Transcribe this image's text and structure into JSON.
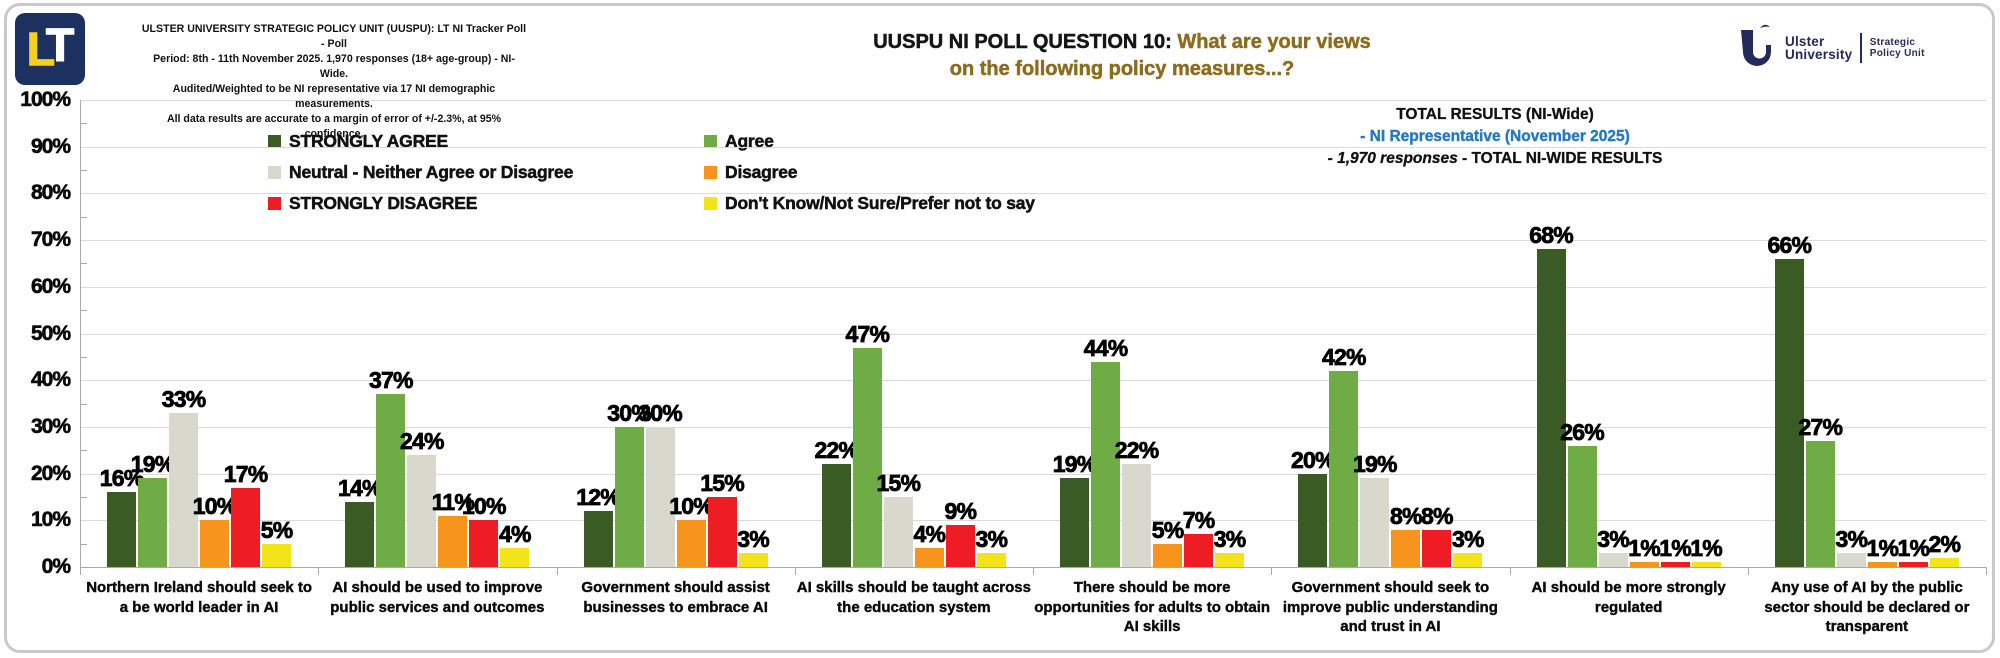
{
  "header": {
    "lt_logo_l": "L",
    "lt_logo_t": "T",
    "poll_details_lines": [
      "ULSTER UNIVERSITY STRATEGIC POLICY UNIT (UUSPU): LT NI Tracker Poll - Poll",
      "Period: 8th - 11th November 2025. 1,970 responses (18+ age-group) - NI-Wide.",
      "Audited/Weighted to be NI representative via 17 NI demographic measurements.",
      "All data results are accurate to a margin of error of +/-2.3%, at 95% confidence."
    ],
    "title_prefix": "UUSPU NI POLL QUESTION 10:",
    "title_question_line1": "What are your views",
    "title_question_line2": "on the following policy measures...?",
    "title_question_color": "#8a6d1e",
    "uu_logo": {
      "org_line1": "Ulster",
      "org_line2": "University",
      "unit_line1": "Strategic",
      "unit_line2": "Policy Unit",
      "color": "#232a5c"
    }
  },
  "results_box": {
    "line1": "TOTAL RESULTS (NI-Wide)",
    "line2": "- NI Representative (November 2025)",
    "line2_color": "#2878be",
    "line3_italic": "- 1,970 responses",
    "line3_rest": " - TOTAL NI-WIDE RESULTS"
  },
  "chart_data": {
    "type": "bar",
    "title": "UUSPU NI POLL QUESTION 10: What are your views on the following policy measures...?",
    "xlabel": "",
    "ylabel": "",
    "ylim": [
      0,
      100
    ],
    "yticks": [
      0,
      10,
      20,
      30,
      40,
      50,
      60,
      70,
      80,
      90,
      100
    ],
    "ytick_suffix": "%",
    "grid": true,
    "legend_position": "top-left",
    "value_label_suffix": "%",
    "categories": [
      "Northern Ireland should seek to a be world leader in AI",
      "AI should be used to improve public services and outcomes",
      "Government should assist businesses to embrace AI",
      "AI skills should be taught across the education system",
      "There should be more opportunities for adults to obtain AI skills",
      "Government should seek to improve public understanding and trust in AI",
      "AI should be more strongly regulated",
      "Any use of AI by the public sector should be declared or transparent"
    ],
    "series": [
      {
        "key": "strongly-agree",
        "name": "STRONGLY AGREE",
        "color": "#3b5b24",
        "values": [
          16,
          14,
          12,
          22,
          19,
          20,
          68,
          66
        ]
      },
      {
        "key": "agree",
        "name": "Agree",
        "color": "#6fac46",
        "values": [
          19,
          37,
          30,
          47,
          44,
          42,
          26,
          27
        ]
      },
      {
        "key": "neutral",
        "name": "Neutral - Neither Agree or Disagree",
        "color": "#d8d8cc",
        "values": [
          33,
          24,
          30,
          15,
          22,
          19,
          3,
          3
        ]
      },
      {
        "key": "disagree",
        "name": "Disagree",
        "color": "#f7941e",
        "values": [
          10,
          11,
          10,
          4,
          5,
          8,
          1,
          1
        ]
      },
      {
        "key": "strongly-disagree",
        "name": "STRONGLY DISAGREE",
        "color": "#ee1d23",
        "values": [
          17,
          10,
          15,
          9,
          7,
          8,
          1,
          1
        ]
      },
      {
        "key": "dont-know",
        "name": "Don't Know/Not Sure/Prefer not to say",
        "color": "#f2e418",
        "values": [
          5,
          4,
          3,
          3,
          3,
          3,
          1,
          2
        ]
      }
    ]
  }
}
